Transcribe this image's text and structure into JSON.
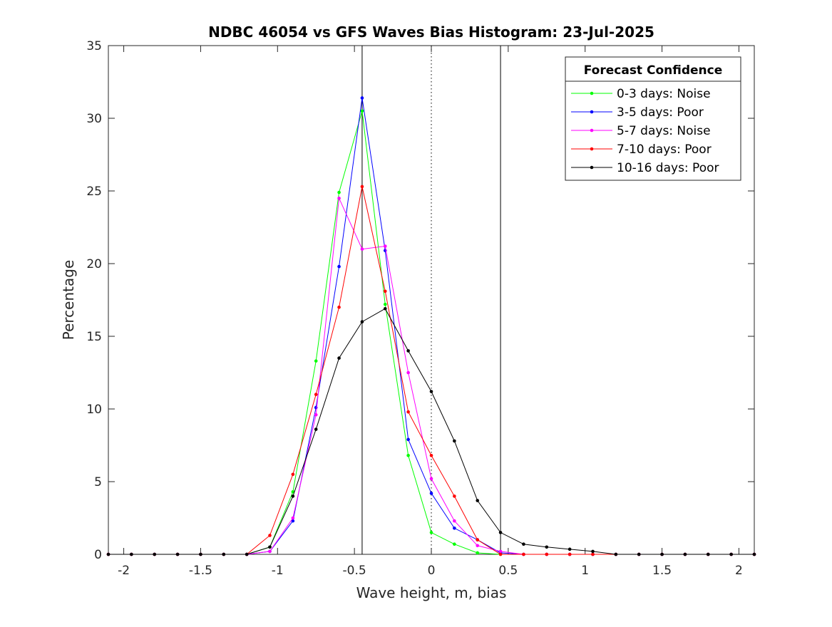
{
  "chart_data": {
    "type": "line",
    "title": "NDBC 46054 vs GFS Waves Bias Histogram: 23-Jul-2025",
    "xlabel": "Wave height, m, bias",
    "ylabel": "Percentage",
    "xlim": [
      -2.1,
      2.1
    ],
    "ylim": [
      0,
      35
    ],
    "xticks": [
      -2,
      -1.5,
      -1,
      -0.5,
      0,
      0.5,
      1,
      1.5,
      2
    ],
    "yticks": [
      0,
      5,
      10,
      15,
      20,
      25,
      30,
      35
    ],
    "grid": false,
    "legend": {
      "title": "Forecast Confidence",
      "placement": "top-right"
    },
    "reference_lines": [
      {
        "x": -0.45,
        "style": "solid"
      },
      {
        "x": 0,
        "style": "dotted"
      },
      {
        "x": 0.45,
        "style": "solid"
      }
    ],
    "x": [
      -2.1,
      -1.95,
      -1.8,
      -1.65,
      -1.5,
      -1.35,
      -1.2,
      -1.05,
      -0.9,
      -0.75,
      -0.6,
      -0.45,
      -0.3,
      -0.15,
      0,
      0.15,
      0.3,
      0.45,
      0.6,
      0.75,
      0.9,
      1.05,
      1.2,
      1.35,
      1.5,
      1.65,
      1.8,
      1.95,
      2.1
    ],
    "series": [
      {
        "name": "0-3 days: Noise",
        "color": "#00ff00",
        "values": [
          0,
          0,
          0,
          0,
          0,
          0,
          0,
          0.5,
          4.3,
          13.3,
          24.9,
          30.5,
          17.2,
          6.8,
          1.5,
          0.7,
          0.1,
          0,
          0,
          0,
          0,
          0,
          0,
          0,
          0,
          0,
          0,
          0,
          0
        ]
      },
      {
        "name": "3-5 days: Poor",
        "color": "#0000ff",
        "values": [
          0,
          0,
          0,
          0,
          0,
          0,
          0,
          0.2,
          2.3,
          10.1,
          19.8,
          31.4,
          20.9,
          7.9,
          4.2,
          1.8,
          1.0,
          0.1,
          0,
          0,
          0,
          0,
          0,
          0,
          0,
          0,
          0,
          0,
          0
        ]
      },
      {
        "name": "5-7 days: Noise",
        "color": "#ff00ff",
        "values": [
          0,
          0,
          0,
          0,
          0,
          0,
          0,
          0.2,
          2.5,
          9.6,
          24.5,
          21.0,
          21.2,
          12.5,
          5.2,
          2.3,
          0.6,
          0.2,
          0,
          0,
          0,
          0,
          0,
          0,
          0,
          0,
          0,
          0,
          0
        ]
      },
      {
        "name": "7-10 days: Poor",
        "color": "#ff0000",
        "values": [
          0,
          0,
          0,
          0,
          0,
          0,
          0,
          1.3,
          5.5,
          11.0,
          17.0,
          25.3,
          18.1,
          9.8,
          6.8,
          4.0,
          1.0,
          0,
          0,
          0,
          0,
          0,
          0,
          0,
          0,
          0,
          0,
          0,
          0
        ]
      },
      {
        "name": "10-16 days: Poor",
        "color": "#000000",
        "values": [
          0,
          0,
          0,
          0,
          0,
          0,
          0,
          0.5,
          4.0,
          8.6,
          13.5,
          16.0,
          16.9,
          14.0,
          11.2,
          7.8,
          3.7,
          1.5,
          0.7,
          0.5,
          0.35,
          0.2,
          0,
          0,
          0,
          0,
          0,
          0,
          0
        ]
      }
    ]
  }
}
